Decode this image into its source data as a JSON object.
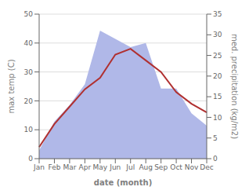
{
  "chart_data": {
    "type": "line",
    "categories": [
      "Jan",
      "Feb",
      "Mar",
      "Apr",
      "May",
      "Jun",
      "Jul",
      "Aug",
      "Sep",
      "Oct",
      "Nov",
      "Dec"
    ],
    "series": [
      {
        "type": "area",
        "axis": "y2",
        "color": "#b0b8e8",
        "values": [
          2,
          9,
          13,
          18,
          31,
          29,
          27,
          28,
          17,
          17,
          11,
          8
        ]
      },
      {
        "type": "line",
        "color": "#b03030",
        "values": [
          4,
          12,
          18,
          24,
          28,
          36,
          38,
          34,
          30,
          23,
          19,
          16
        ]
      }
    ],
    "xlabel": "date (month)",
    "ylabel": "max temp (C)",
    "y2label": "med. precipitation (kg/m2)",
    "ylim": [
      0,
      50
    ],
    "yticks": [
      0,
      10,
      20,
      30,
      40,
      50
    ],
    "y2lim": [
      0,
      35
    ],
    "y2ticks": [
      0,
      5,
      10,
      15,
      20,
      25,
      30,
      35
    ],
    "grid": true
  }
}
